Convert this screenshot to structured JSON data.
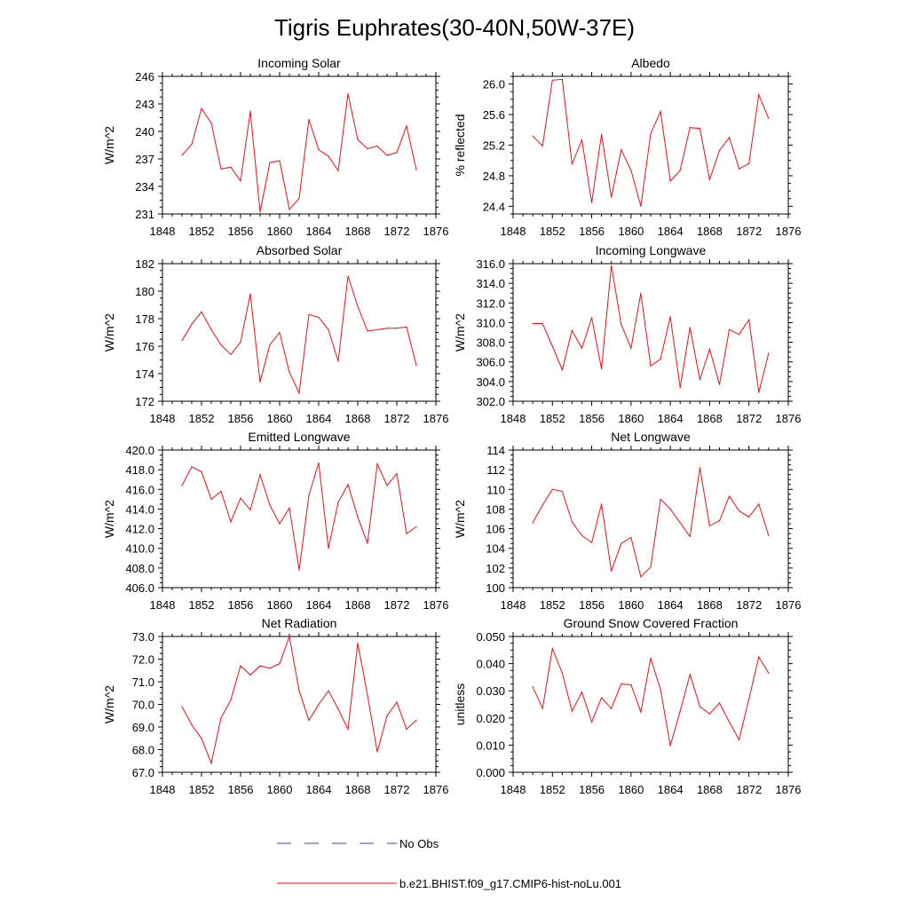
{
  "title": "Tigris Euphrates(30-40N,50W-37E)",
  "colors": {
    "model": "#e8101a",
    "obs": "#3b3fbf",
    "axis": "#000000"
  },
  "legend": [
    {
      "label": "No Obs",
      "style": "dashed",
      "color": "#3b3fbf"
    },
    {
      "label": "b.e21.BHIST.f09_g17.CMIP6-hist-noLu.001",
      "style": "solid",
      "color": "#e8101a"
    }
  ],
  "chart_data": [
    {
      "type": "line",
      "title": "Incoming Solar",
      "ylabel": "W/m^2",
      "xlim": [
        1848,
        1876
      ],
      "ylim": [
        231,
        246
      ],
      "xticks": [
        "1848",
        "1852",
        "1856",
        "1860",
        "1864",
        "1868",
        "1872",
        "1876"
      ],
      "yticks": [
        "231",
        "234",
        "237",
        "240",
        "243",
        "246"
      ],
      "x": [
        1850,
        1851,
        1852,
        1853,
        1854,
        1855,
        1856,
        1857,
        1858,
        1859,
        1860,
        1861,
        1862,
        1863,
        1864,
        1865,
        1866,
        1867,
        1868,
        1869,
        1870,
        1871,
        1872,
        1873,
        1874
      ],
      "values": [
        237.4,
        238.6,
        242.5,
        240.9,
        235.9,
        236.1,
        234.6,
        242.2,
        231.2,
        236.6,
        236.8,
        231.5,
        232.7,
        241.3,
        238.0,
        237.3,
        235.7,
        244.1,
        239.1,
        238.1,
        238.4,
        237.4,
        237.7,
        240.6,
        235.8
      ]
    },
    {
      "type": "line",
      "title": "Albedo",
      "ylabel": "% reflected",
      "xlim": [
        1848,
        1876
      ],
      "ylim": [
        24.3,
        26.1
      ],
      "xticks": [
        "1848",
        "1852",
        "1856",
        "1860",
        "1864",
        "1868",
        "1872",
        "1876"
      ],
      "yticks": [
        "24.4",
        "24.8",
        "25.2",
        "25.6",
        "26.0"
      ],
      "x": [
        1850,
        1851,
        1852,
        1853,
        1854,
        1855,
        1856,
        1857,
        1858,
        1859,
        1860,
        1861,
        1862,
        1863,
        1864,
        1865,
        1866,
        1867,
        1868,
        1869,
        1870,
        1871,
        1872,
        1873,
        1874
      ],
      "values": [
        25.32,
        25.19,
        26.05,
        26.06,
        24.95,
        25.27,
        24.45,
        25.34,
        24.52,
        25.14,
        24.87,
        24.4,
        25.35,
        25.64,
        24.73,
        24.87,
        25.43,
        25.42,
        24.75,
        25.13,
        25.3,
        24.89,
        24.96,
        25.86,
        25.55
      ]
    },
    {
      "type": "line",
      "title": "Absorbed Solar",
      "ylabel": "W/m^2",
      "xlim": [
        1848,
        1876
      ],
      "ylim": [
        172,
        182
      ],
      "xticks": [
        "1848",
        "1852",
        "1856",
        "1860",
        "1864",
        "1868",
        "1872",
        "1876"
      ],
      "yticks": [
        "172",
        "174",
        "176",
        "178",
        "180",
        "182"
      ],
      "x": [
        1850,
        1851,
        1852,
        1853,
        1854,
        1855,
        1856,
        1857,
        1858,
        1859,
        1860,
        1861,
        1862,
        1863,
        1864,
        1865,
        1866,
        1867,
        1868,
        1869,
        1870,
        1871,
        1872,
        1873,
        1874
      ],
      "values": [
        176.4,
        177.6,
        178.5,
        177.2,
        176.1,
        175.4,
        176.3,
        179.8,
        173.4,
        176.1,
        177.0,
        174.1,
        172.6,
        178.3,
        178.1,
        177.2,
        174.9,
        181.1,
        178.9,
        177.1,
        177.2,
        177.3,
        177.3,
        177.4,
        174.6
      ]
    },
    {
      "type": "line",
      "title": "Incoming Longwave",
      "ylabel": "W/m^2",
      "xlim": [
        1848,
        1876
      ],
      "ylim": [
        302,
        316
      ],
      "xticks": [
        "1848",
        "1852",
        "1856",
        "1860",
        "1864",
        "1868",
        "1872",
        "1876"
      ],
      "yticks": [
        "302.0",
        "304.0",
        "306.0",
        "308.0",
        "310.0",
        "312.0",
        "314.0",
        "316.0"
      ],
      "x": [
        1850,
        1851,
        1852,
        1853,
        1854,
        1855,
        1856,
        1857,
        1858,
        1859,
        1860,
        1861,
        1862,
        1863,
        1864,
        1865,
        1866,
        1867,
        1868,
        1869,
        1870,
        1871,
        1872,
        1873,
        1874
      ],
      "values": [
        309.9,
        309.9,
        307.6,
        305.2,
        309.2,
        307.4,
        310.5,
        305.3,
        315.8,
        309.8,
        307.4,
        313.0,
        305.6,
        306.3,
        310.6,
        303.4,
        309.5,
        304.2,
        307.3,
        303.7,
        309.3,
        308.8,
        310.3,
        302.9,
        306.9
      ]
    },
    {
      "type": "line",
      "title": "Emitted Longwave",
      "ylabel": "W/m^2",
      "xlim": [
        1848,
        1876
      ],
      "ylim": [
        406,
        420
      ],
      "xticks": [
        "1848",
        "1852",
        "1856",
        "1860",
        "1864",
        "1868",
        "1872",
        "1876"
      ],
      "yticks": [
        "406.0",
        "408.0",
        "410.0",
        "412.0",
        "414.0",
        "416.0",
        "418.0",
        "420.0"
      ],
      "x": [
        1850,
        1851,
        1852,
        1853,
        1854,
        1855,
        1856,
        1857,
        1858,
        1859,
        1860,
        1861,
        1862,
        1863,
        1864,
        1865,
        1866,
        1867,
        1868,
        1869,
        1870,
        1871,
        1872,
        1873,
        1874
      ],
      "values": [
        416.4,
        418.3,
        417.8,
        415.0,
        415.8,
        412.7,
        415.1,
        413.9,
        417.5,
        414.4,
        412.5,
        414.1,
        407.8,
        415.4,
        418.7,
        410.0,
        414.7,
        416.5,
        413.2,
        410.5,
        418.6,
        416.4,
        417.6,
        411.5,
        412.2
      ]
    },
    {
      "type": "line",
      "title": "Net Longwave",
      "ylabel": "W/m^2",
      "xlim": [
        1848,
        1876
      ],
      "ylim": [
        100,
        114
      ],
      "xticks": [
        "1848",
        "1852",
        "1856",
        "1860",
        "1864",
        "1868",
        "1872",
        "1876"
      ],
      "yticks": [
        "100",
        "102",
        "104",
        "106",
        "108",
        "110",
        "112",
        "114"
      ],
      "x": [
        1850,
        1851,
        1852,
        1853,
        1854,
        1855,
        1856,
        1857,
        1858,
        1859,
        1860,
        1861,
        1862,
        1863,
        1864,
        1865,
        1866,
        1867,
        1868,
        1869,
        1870,
        1871,
        1872,
        1873,
        1874
      ],
      "values": [
        106.6,
        108.4,
        110.0,
        109.8,
        106.7,
        105.3,
        104.6,
        108.5,
        101.7,
        104.5,
        105.1,
        101.1,
        102.1,
        109.0,
        108.0,
        106.6,
        105.2,
        112.2,
        106.3,
        106.8,
        109.3,
        107.8,
        107.2,
        108.5,
        105.3
      ]
    },
    {
      "type": "line",
      "title": "Net Radiation",
      "ylabel": "W/m^2",
      "xlim": [
        1848,
        1876
      ],
      "ylim": [
        67,
        73
      ],
      "xticks": [
        "1848",
        "1852",
        "1856",
        "1860",
        "1864",
        "1868",
        "1872",
        "1876"
      ],
      "yticks": [
        "67.0",
        "68.0",
        "69.0",
        "70.0",
        "71.0",
        "72.0",
        "73.0"
      ],
      "x": [
        1850,
        1851,
        1852,
        1853,
        1854,
        1855,
        1856,
        1857,
        1858,
        1859,
        1860,
        1861,
        1862,
        1863,
        1864,
        1865,
        1866,
        1867,
        1868,
        1869,
        1870,
        1871,
        1872,
        1873,
        1874
      ],
      "values": [
        69.9,
        69.1,
        68.5,
        67.4,
        69.4,
        70.2,
        71.7,
        71.3,
        71.7,
        71.6,
        71.8,
        73.0,
        70.6,
        69.3,
        70.0,
        70.6,
        69.8,
        68.9,
        72.7,
        70.4,
        67.9,
        69.5,
        70.1,
        68.9,
        69.3
      ]
    },
    {
      "type": "line",
      "title": "Ground Snow Covered Fraction",
      "ylabel": "unitless",
      "xlim": [
        1848,
        1876
      ],
      "ylim": [
        0,
        0.05
      ],
      "xticks": [
        "1848",
        "1852",
        "1856",
        "1860",
        "1864",
        "1868",
        "1872",
        "1876"
      ],
      "yticks": [
        "0.000",
        "0.010",
        "0.020",
        "0.030",
        "0.040",
        "0.050"
      ],
      "x": [
        1850,
        1851,
        1852,
        1853,
        1854,
        1855,
        1856,
        1857,
        1858,
        1859,
        1860,
        1861,
        1862,
        1863,
        1864,
        1865,
        1866,
        1867,
        1868,
        1869,
        1870,
        1871,
        1872,
        1873,
        1874
      ],
      "values": [
        0.0315,
        0.0235,
        0.0455,
        0.0365,
        0.0225,
        0.0295,
        0.0185,
        0.0275,
        0.0235,
        0.0325,
        0.0322,
        0.0222,
        0.042,
        0.0305,
        0.0098,
        0.0225,
        0.036,
        0.0242,
        0.0215,
        0.0255,
        0.0185,
        0.012,
        0.027,
        0.0425,
        0.0365
      ]
    }
  ]
}
